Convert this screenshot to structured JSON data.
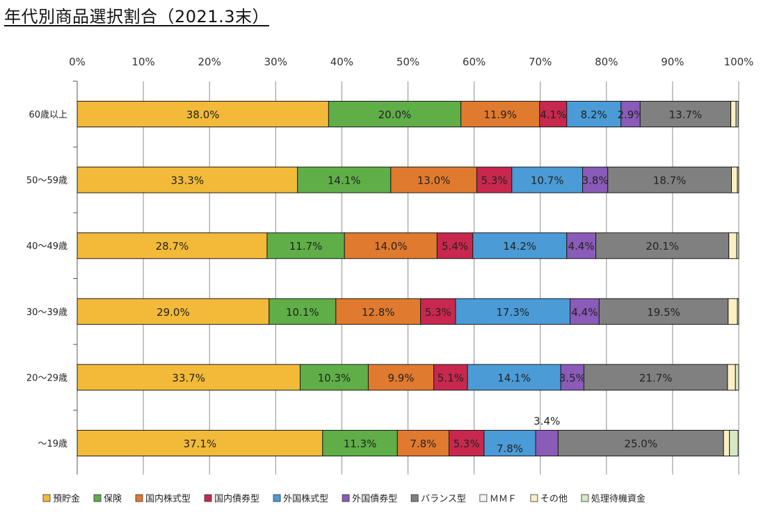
{
  "title": "年代別商品選択割合（2021.3末）",
  "chart_data": {
    "type": "stacked-bar-horizontal",
    "title": "年代別商品選択割合（2021.3末）",
    "xlim": [
      0,
      100
    ],
    "x_ticks": [
      "0%",
      "10%",
      "20%",
      "30%",
      "40%",
      "50%",
      "60%",
      "70%",
      "80%",
      "90%",
      "100%"
    ],
    "legend_position": "bottom",
    "categories": [
      "60歳以上",
      "50〜59歳",
      "40〜49歳",
      "30〜39歳",
      "20〜29歳",
      "〜19歳"
    ],
    "series": [
      {
        "name": "預貯金",
        "color": "#F2BA38",
        "values": [
          38.0,
          33.3,
          28.7,
          29.0,
          33.7,
          37.1
        ],
        "labels": [
          "38.0%",
          "33.3%",
          "28.7%",
          "29.0%",
          "33.7%",
          "37.1%"
        ]
      },
      {
        "name": "保険",
        "color": "#5FAE48",
        "values": [
          20.0,
          14.1,
          11.7,
          10.1,
          10.3,
          11.3
        ],
        "labels": [
          "20.0%",
          "14.1%",
          "11.7%",
          "10.1%",
          "10.3%",
          "11.3%"
        ]
      },
      {
        "name": "国内株式型",
        "color": "#E07A2F",
        "values": [
          11.9,
          13.0,
          14.0,
          12.8,
          9.9,
          7.8
        ],
        "labels": [
          "11.9%",
          "13.0%",
          "14.0%",
          "12.8%",
          "9.9%",
          "7.8%"
        ]
      },
      {
        "name": "国内債券型",
        "color": "#C8284E",
        "values": [
          4.1,
          5.3,
          5.4,
          5.3,
          5.1,
          5.3
        ],
        "labels": [
          "4.1%",
          "5.3%",
          "5.4%",
          "5.3%",
          "5.1%",
          "5.3%"
        ]
      },
      {
        "name": "外国株式型",
        "color": "#4B9BD6",
        "values": [
          8.2,
          10.7,
          14.2,
          17.3,
          14.1,
          7.8
        ],
        "labels": [
          "8.2%",
          "10.7%",
          "14.2%",
          "17.3%",
          "14.1%",
          "7.8%"
        ]
      },
      {
        "name": "外国債券型",
        "color": "#8A5BB8",
        "values": [
          2.9,
          3.8,
          4.4,
          4.4,
          3.5,
          3.4
        ],
        "labels": [
          "2.9%",
          "3.8%",
          "4.4%",
          "4.4%",
          "3.5%",
          "3.4%"
        ]
      },
      {
        "name": "バランス型",
        "color": "#808080",
        "values": [
          13.7,
          18.7,
          20.1,
          19.5,
          21.7,
          25.0
        ],
        "labels": [
          "13.7%",
          "18.7%",
          "20.1%",
          "19.5%",
          "21.7%",
          "25.0%"
        ]
      },
      {
        "name": "ＭＭＦ",
        "color": "#F4F4F4",
        "values": [
          0.0,
          0.0,
          0.0,
          0.0,
          0.0,
          0.0
        ],
        "labels": [
          "",
          "",
          "",
          "",
          "",
          ""
        ]
      },
      {
        "name": "その他",
        "color": "#FCEFC2",
        "values": [
          0.8,
          0.9,
          1.2,
          1.4,
          1.2,
          0.9
        ],
        "labels": [
          "",
          "",
          "",
          "",
          "",
          ""
        ]
      },
      {
        "name": "処理待機資金",
        "color": "#D6E8C6",
        "values": [
          0.3,
          0.2,
          0.3,
          0.2,
          0.5,
          1.3
        ],
        "labels": [
          "",
          "",
          "",
          "",
          "",
          ""
        ]
      }
    ]
  }
}
